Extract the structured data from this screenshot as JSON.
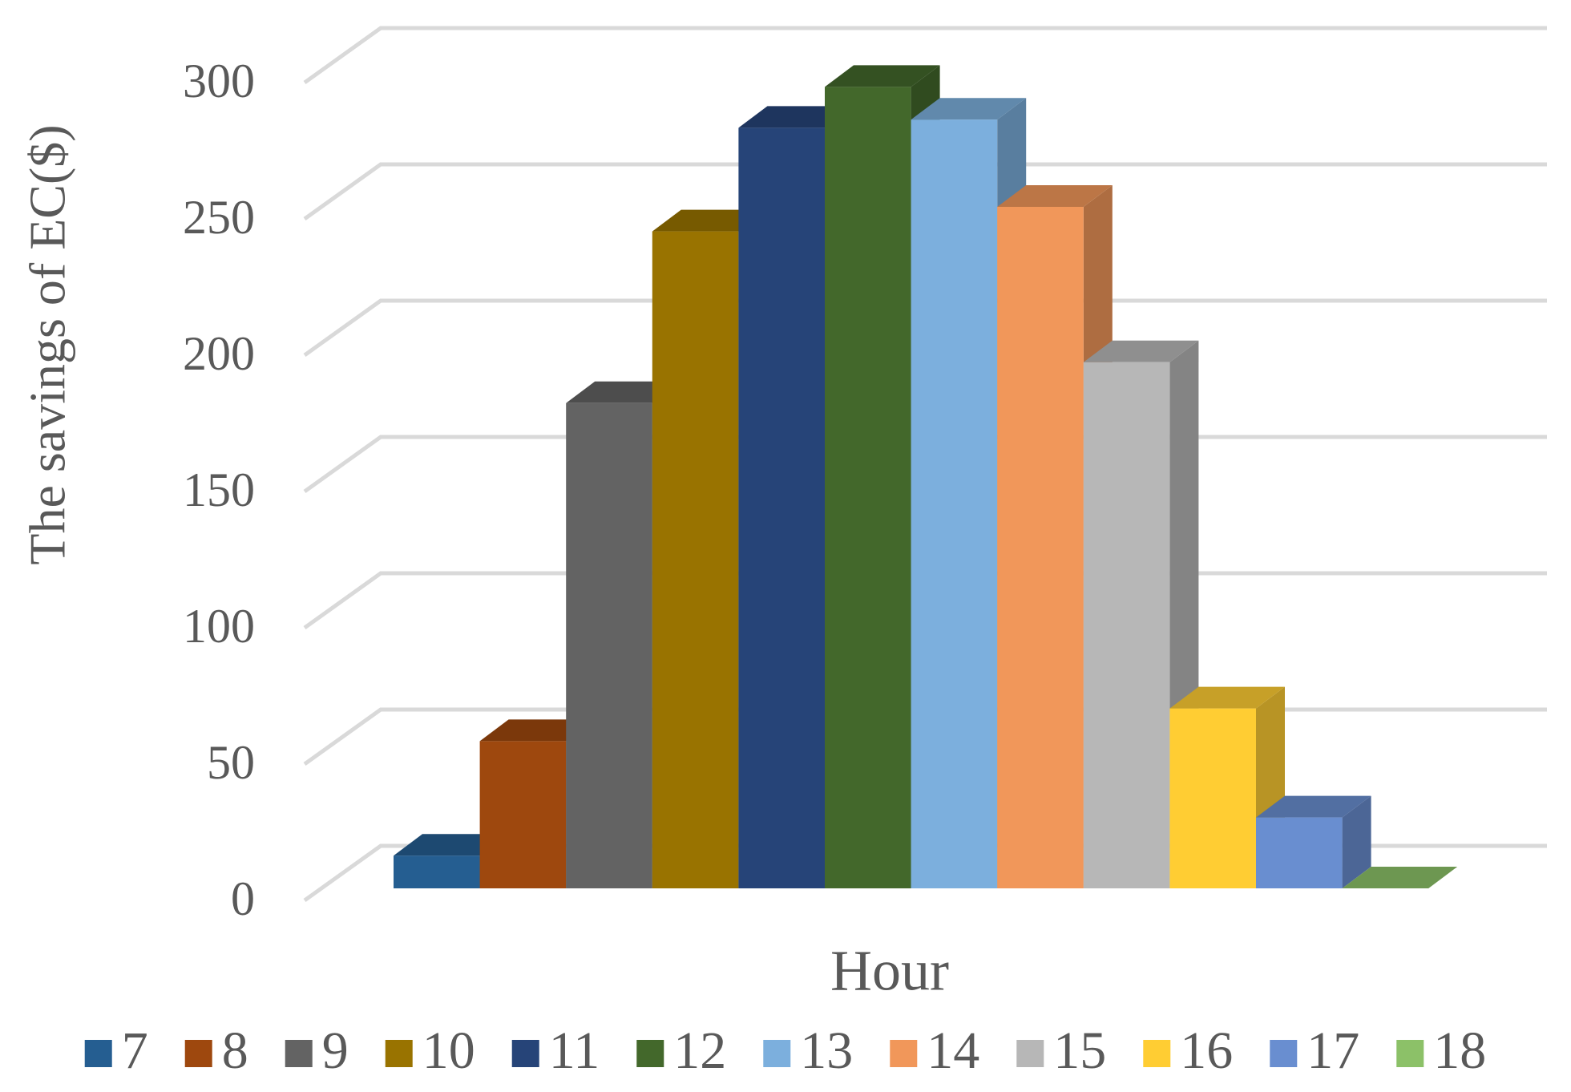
{
  "chart_data": {
    "type": "bar3d",
    "x_label": "Hour",
    "y_label": "The savings of EC($)",
    "categories": [
      null
    ],
    "ylim": [
      0,
      300
    ],
    "yticks": [
      0,
      50,
      100,
      150,
      200,
      250,
      300
    ],
    "grid": true,
    "legend": "bottom",
    "series": [
      {
        "name": "7",
        "color": "#255e91",
        "values": [
          12
        ]
      },
      {
        "name": "8",
        "color": "#9e480e",
        "values": [
          54
        ]
      },
      {
        "name": "9",
        "color": "#636363",
        "values": [
          178
        ]
      },
      {
        "name": "10",
        "color": "#997300",
        "values": [
          241
        ]
      },
      {
        "name": "11",
        "color": "#264478",
        "values": [
          279
        ]
      },
      {
        "name": "12",
        "color": "#43682b",
        "values": [
          294
        ]
      },
      {
        "name": "13",
        "color": "#7cafdd",
        "values": [
          282
        ]
      },
      {
        "name": "14",
        "color": "#f1975a",
        "values": [
          250
        ]
      },
      {
        "name": "15",
        "color": "#b7b7b7",
        "values": [
          193
        ]
      },
      {
        "name": "16",
        "color": "#ffcd33",
        "values": [
          66
        ]
      },
      {
        "name": "17",
        "color": "#698ed0",
        "values": [
          26
        ]
      },
      {
        "name": "18",
        "color": "#8cc168",
        "values": [
          0
        ]
      }
    ]
  }
}
